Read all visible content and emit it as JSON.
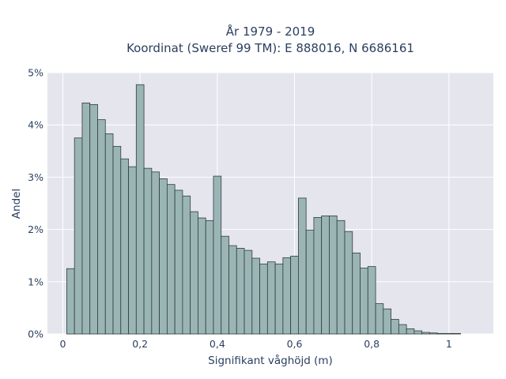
{
  "chart_data": {
    "type": "bar",
    "title": [
      "År 1979 - 2019",
      "Koordinat (Sweref 99 TM): E 888016, N 6686161"
    ],
    "xlabel": "Signifikant våghöjd (m)",
    "ylabel": "Andel",
    "xlim": [
      -0.04,
      1.115
    ],
    "ylim": [
      0,
      5
    ],
    "x_ticks": [
      0,
      0.2,
      0.4,
      0.6,
      0.8,
      1
    ],
    "x_tick_labels": [
      "0",
      "0,2",
      "0,4",
      "0,6",
      "0,8",
      "1"
    ],
    "y_ticks": [
      0,
      1,
      2,
      3,
      4,
      5
    ],
    "y_tick_labels": [
      "0%",
      "1%",
      "2%",
      "3%",
      "4%",
      "5%"
    ],
    "grid": true,
    "bin_width": 0.02,
    "bins_start": [
      0.01,
      0.03,
      0.05,
      0.07,
      0.09,
      0.11,
      0.13,
      0.15,
      0.17,
      0.19,
      0.21,
      0.23,
      0.25,
      0.27,
      0.29,
      0.31,
      0.33,
      0.35,
      0.37,
      0.39,
      0.41,
      0.43,
      0.45,
      0.47,
      0.49,
      0.51,
      0.53,
      0.55,
      0.57,
      0.59,
      0.61,
      0.63,
      0.65,
      0.67,
      0.69,
      0.71,
      0.73,
      0.75,
      0.77,
      0.79,
      0.81,
      0.83,
      0.85,
      0.87,
      0.89,
      0.91,
      0.93,
      0.95,
      0.97,
      0.99,
      1.01,
      1.03
    ],
    "values": [
      1.25,
      3.75,
      4.42,
      4.39,
      4.1,
      3.83,
      3.59,
      3.35,
      3.2,
      4.77,
      3.17,
      3.1,
      2.97,
      2.86,
      2.75,
      2.64,
      2.34,
      2.22,
      2.17,
      3.02,
      1.87,
      1.69,
      1.64,
      1.6,
      1.45,
      1.34,
      1.38,
      1.34,
      1.46,
      1.49,
      2.6,
      1.99,
      2.23,
      2.26,
      2.26,
      2.17,
      1.96,
      1.55,
      1.26,
      1.29,
      0.58,
      0.48,
      0.28,
      0.18,
      0.1,
      0.06,
      0.03,
      0.02,
      0.01,
      0.01,
      0.01,
      0.0
    ]
  }
}
